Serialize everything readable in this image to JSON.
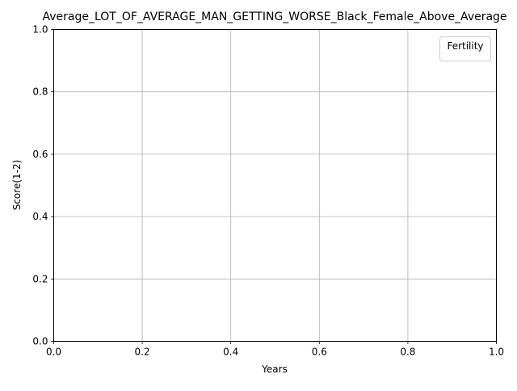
{
  "chart_data": {
    "type": "line",
    "title": "Average_LOT_OF_AVERAGE_MAN_GETTING_WORSE_Black_Female_Above_Average",
    "xlabel": "Years",
    "ylabel": "Score(1-2)",
    "xlim": [
      0.0,
      1.0
    ],
    "ylim": [
      0.0,
      1.0
    ],
    "x_ticks": [
      "0.0",
      "0.2",
      "0.4",
      "0.6",
      "0.8",
      "1.0"
    ],
    "y_ticks": [
      "0.0",
      "0.2",
      "0.4",
      "0.6",
      "0.8",
      "1.0"
    ],
    "grid": true,
    "legend": {
      "title": "Fertility",
      "placement": "top-right",
      "entries": []
    },
    "series": []
  }
}
